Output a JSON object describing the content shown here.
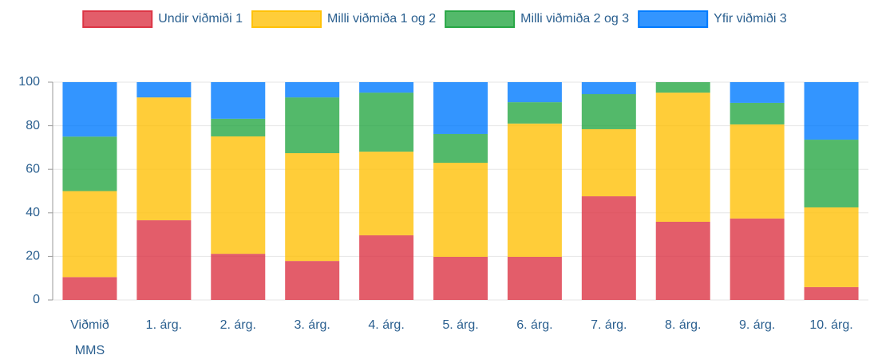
{
  "chart_data": {
    "type": "stacked_bar",
    "categories": [
      "Viðmið MMS",
      "1. árg.",
      "2. árg.",
      "3. árg.",
      "4. árg.",
      "5. árg.",
      "6. árg.",
      "7. árg.",
      "8. árg.",
      "9. árg.",
      "10. árg."
    ],
    "series": [
      {
        "name": "Undir viðmiði 1",
        "color": "#dc3545",
        "values": [
          10.5,
          36.6,
          21.2,
          17.9,
          29.7,
          19.8,
          19.8,
          47.6,
          35.9,
          37.4,
          5.9
        ]
      },
      {
        "name": "Milli viðmiða 1 og 2",
        "color": "#ffc107",
        "values": [
          39.5,
          56.4,
          53.9,
          49.5,
          38.4,
          43.2,
          61.2,
          30.8,
          59.3,
          43.2,
          36.6
        ]
      },
      {
        "name": "Milli viðmiða 2 og 3",
        "color": "#28a745",
        "values": [
          25,
          0,
          8.1,
          25.6,
          27.1,
          13.2,
          9.8,
          16.1,
          4.8,
          9.9,
          31.1
        ]
      },
      {
        "name": "Yfir viðmiði 3",
        "color": "#007bff",
        "values": [
          25,
          7,
          16.8,
          7,
          4.8,
          23.8,
          9.2,
          5.5,
          0,
          9.5,
          26.4
        ]
      }
    ],
    "ylim": [
      0,
      100
    ],
    "yticks": [
      0,
      20,
      40,
      60,
      80,
      100
    ],
    "grid": true
  }
}
